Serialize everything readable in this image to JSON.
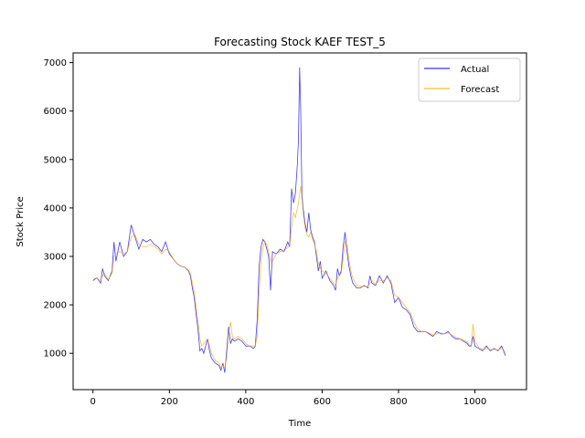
{
  "chart_data": {
    "type": "line",
    "title": "Forecasting Stock KAEF TEST_5",
    "xlabel": "Time",
    "ylabel": "Stock Price",
    "xlim": [
      -52,
      1135
    ],
    "ylim": [
      250,
      7200
    ],
    "x_ticks": [
      0,
      200,
      400,
      600,
      800,
      1000
    ],
    "y_ticks": [
      1000,
      2000,
      3000,
      4000,
      5000,
      6000,
      7000
    ],
    "grid": false,
    "legend": {
      "position": "top-right"
    },
    "series": [
      {
        "name": "Actual",
        "color": "#0000ff",
        "points": [
          [
            0,
            2500
          ],
          [
            10,
            2560
          ],
          [
            20,
            2450
          ],
          [
            25,
            2750
          ],
          [
            30,
            2600
          ],
          [
            40,
            2500
          ],
          [
            50,
            2700
          ],
          [
            55,
            3300
          ],
          [
            60,
            2900
          ],
          [
            70,
            3300
          ],
          [
            80,
            3000
          ],
          [
            90,
            3100
          ],
          [
            100,
            3650
          ],
          [
            110,
            3400
          ],
          [
            120,
            3150
          ],
          [
            130,
            3350
          ],
          [
            140,
            3300
          ],
          [
            150,
            3350
          ],
          [
            160,
            3250
          ],
          [
            170,
            3200
          ],
          [
            180,
            3100
          ],
          [
            190,
            3300
          ],
          [
            200,
            3050
          ],
          [
            210,
            2950
          ],
          [
            220,
            2850
          ],
          [
            230,
            2800
          ],
          [
            240,
            2780
          ],
          [
            250,
            2700
          ],
          [
            255,
            2600
          ],
          [
            260,
            2350
          ],
          [
            265,
            2150
          ],
          [
            270,
            1800
          ],
          [
            275,
            1500
          ],
          [
            280,
            1050
          ],
          [
            285,
            1100
          ],
          [
            290,
            1000
          ],
          [
            300,
            1300
          ],
          [
            305,
            1050
          ],
          [
            310,
            900
          ],
          [
            320,
            800
          ],
          [
            330,
            750
          ],
          [
            335,
            650
          ],
          [
            340,
            800
          ],
          [
            345,
            600
          ],
          [
            350,
            1050
          ],
          [
            355,
            1550
          ],
          [
            360,
            1200
          ],
          [
            365,
            1300
          ],
          [
            370,
            1250
          ],
          [
            380,
            1300
          ],
          [
            390,
            1250
          ],
          [
            400,
            1150
          ],
          [
            410,
            1150
          ],
          [
            420,
            1100
          ],
          [
            425,
            1150
          ],
          [
            430,
            1700
          ],
          [
            435,
            2800
          ],
          [
            440,
            3200
          ],
          [
            445,
            3350
          ],
          [
            450,
            3300
          ],
          [
            455,
            3150
          ],
          [
            460,
            3000
          ],
          [
            465,
            2300
          ],
          [
            470,
            3100
          ],
          [
            480,
            3050
          ],
          [
            490,
            3150
          ],
          [
            500,
            3100
          ],
          [
            510,
            3300
          ],
          [
            515,
            3200
          ],
          [
            520,
            4400
          ],
          [
            525,
            4100
          ],
          [
            530,
            4300
          ],
          [
            535,
            4900
          ],
          [
            538,
            5400
          ],
          [
            541,
            6900
          ],
          [
            544,
            6000
          ],
          [
            547,
            4300
          ],
          [
            550,
            4000
          ],
          [
            555,
            3700
          ],
          [
            560,
            3500
          ],
          [
            565,
            3900
          ],
          [
            570,
            3550
          ],
          [
            575,
            3400
          ],
          [
            580,
            3300
          ],
          [
            585,
            3000
          ],
          [
            590,
            2700
          ],
          [
            595,
            2900
          ],
          [
            600,
            2550
          ],
          [
            610,
            2700
          ],
          [
            620,
            2500
          ],
          [
            630,
            2400
          ],
          [
            635,
            2300
          ],
          [
            640,
            2750
          ],
          [
            645,
            2600
          ],
          [
            650,
            2700
          ],
          [
            655,
            3200
          ],
          [
            660,
            3500
          ],
          [
            665,
            3100
          ],
          [
            670,
            2800
          ],
          [
            675,
            2600
          ],
          [
            680,
            2450
          ],
          [
            690,
            2350
          ],
          [
            700,
            2350
          ],
          [
            710,
            2400
          ],
          [
            720,
            2350
          ],
          [
            725,
            2600
          ],
          [
            730,
            2450
          ],
          [
            740,
            2400
          ],
          [
            750,
            2600
          ],
          [
            760,
            2450
          ],
          [
            770,
            2600
          ],
          [
            780,
            2450
          ],
          [
            790,
            2050
          ],
          [
            800,
            2150
          ],
          [
            810,
            1950
          ],
          [
            820,
            1900
          ],
          [
            830,
            1800
          ],
          [
            840,
            1550
          ],
          [
            850,
            1450
          ],
          [
            860,
            1450
          ],
          [
            870,
            1450
          ],
          [
            880,
            1400
          ],
          [
            890,
            1350
          ],
          [
            900,
            1450
          ],
          [
            910,
            1400
          ],
          [
            920,
            1400
          ],
          [
            930,
            1450
          ],
          [
            940,
            1350
          ],
          [
            950,
            1300
          ],
          [
            960,
            1300
          ],
          [
            970,
            1250
          ],
          [
            980,
            1200
          ],
          [
            985,
            1150
          ],
          [
            990,
            1150
          ],
          [
            995,
            1350
          ],
          [
            1000,
            1150
          ],
          [
            1010,
            1100
          ],
          [
            1020,
            1050
          ],
          [
            1030,
            1150
          ],
          [
            1040,
            1050
          ],
          [
            1050,
            1100
          ],
          [
            1060,
            1050
          ],
          [
            1070,
            1150
          ],
          [
            1075,
            1050
          ],
          [
            1080,
            950
          ]
        ]
      },
      {
        "name": "Forecast",
        "color": "#ffa500",
        "points": [
          [
            0,
            2550
          ],
          [
            10,
            2550
          ],
          [
            20,
            2500
          ],
          [
            25,
            2600
          ],
          [
            30,
            2650
          ],
          [
            40,
            2520
          ],
          [
            50,
            2650
          ],
          [
            55,
            3000
          ],
          [
            60,
            3050
          ],
          [
            70,
            3100
          ],
          [
            80,
            3050
          ],
          [
            90,
            3100
          ],
          [
            100,
            3400
          ],
          [
            110,
            3450
          ],
          [
            120,
            3250
          ],
          [
            130,
            3200
          ],
          [
            140,
            3200
          ],
          [
            150,
            3250
          ],
          [
            160,
            3200
          ],
          [
            170,
            3150
          ],
          [
            180,
            3050
          ],
          [
            190,
            3150
          ],
          [
            200,
            3100
          ],
          [
            210,
            2950
          ],
          [
            220,
            2850
          ],
          [
            230,
            2800
          ],
          [
            240,
            2780
          ],
          [
            250,
            2720
          ],
          [
            255,
            2650
          ],
          [
            260,
            2450
          ],
          [
            265,
            2250
          ],
          [
            270,
            1950
          ],
          [
            275,
            1650
          ],
          [
            280,
            1300
          ],
          [
            285,
            1150
          ],
          [
            290,
            1200
          ],
          [
            300,
            1300
          ],
          [
            305,
            1150
          ],
          [
            310,
            1000
          ],
          [
            320,
            850
          ],
          [
            330,
            800
          ],
          [
            335,
            700
          ],
          [
            340,
            750
          ],
          [
            345,
            700
          ],
          [
            350,
            900
          ],
          [
            355,
            1400
          ],
          [
            360,
            1650
          ],
          [
            365,
            1350
          ],
          [
            370,
            1300
          ],
          [
            380,
            1350
          ],
          [
            390,
            1300
          ],
          [
            400,
            1200
          ],
          [
            410,
            1150
          ],
          [
            420,
            1150
          ],
          [
            425,
            1150
          ],
          [
            430,
            1350
          ],
          [
            435,
            2250
          ],
          [
            440,
            2900
          ],
          [
            445,
            3200
          ],
          [
            450,
            3300
          ],
          [
            455,
            3250
          ],
          [
            460,
            3100
          ],
          [
            465,
            2900
          ],
          [
            470,
            2900
          ],
          [
            480,
            3050
          ],
          [
            490,
            3100
          ],
          [
            500,
            3100
          ],
          [
            510,
            3200
          ],
          [
            515,
            3200
          ],
          [
            520,
            3600
          ],
          [
            525,
            3900
          ],
          [
            530,
            3800
          ],
          [
            535,
            4000
          ],
          [
            538,
            4100
          ],
          [
            541,
            4300
          ],
          [
            544,
            4450
          ],
          [
            547,
            4200
          ],
          [
            550,
            3900
          ],
          [
            555,
            3600
          ],
          [
            560,
            3450
          ],
          [
            565,
            3400
          ],
          [
            570,
            3500
          ],
          [
            575,
            3350
          ],
          [
            580,
            3250
          ],
          [
            585,
            3100
          ],
          [
            590,
            2850
          ],
          [
            595,
            2750
          ],
          [
            600,
            2700
          ],
          [
            610,
            2650
          ],
          [
            620,
            2550
          ],
          [
            630,
            2450
          ],
          [
            635,
            2400
          ],
          [
            640,
            2550
          ],
          [
            645,
            2600
          ],
          [
            650,
            2650
          ],
          [
            655,
            2950
          ],
          [
            660,
            3300
          ],
          [
            665,
            3250
          ],
          [
            670,
            2950
          ],
          [
            675,
            2700
          ],
          [
            680,
            2550
          ],
          [
            690,
            2400
          ],
          [
            700,
            2380
          ],
          [
            710,
            2380
          ],
          [
            720,
            2380
          ],
          [
            725,
            2450
          ],
          [
            730,
            2500
          ],
          [
            740,
            2420
          ],
          [
            750,
            2500
          ],
          [
            760,
            2500
          ],
          [
            770,
            2550
          ],
          [
            780,
            2500
          ],
          [
            790,
            2200
          ],
          [
            800,
            2150
          ],
          [
            810,
            2050
          ],
          [
            820,
            1950
          ],
          [
            830,
            1850
          ],
          [
            840,
            1650
          ],
          [
            850,
            1500
          ],
          [
            860,
            1450
          ],
          [
            870,
            1450
          ],
          [
            880,
            1420
          ],
          [
            890,
            1380
          ],
          [
            900,
            1400
          ],
          [
            910,
            1420
          ],
          [
            920,
            1400
          ],
          [
            930,
            1420
          ],
          [
            940,
            1380
          ],
          [
            950,
            1330
          ],
          [
            960,
            1300
          ],
          [
            970,
            1270
          ],
          [
            980,
            1230
          ],
          [
            985,
            1180
          ],
          [
            990,
            1160
          ],
          [
            995,
            1600
          ],
          [
            1000,
            1250
          ],
          [
            1010,
            1120
          ],
          [
            1020,
            1080
          ],
          [
            1030,
            1100
          ],
          [
            1040,
            1080
          ],
          [
            1050,
            1080
          ],
          [
            1060,
            1070
          ],
          [
            1070,
            1100
          ],
          [
            1075,
            1080
          ],
          [
            1080,
            980
          ]
        ]
      }
    ]
  }
}
